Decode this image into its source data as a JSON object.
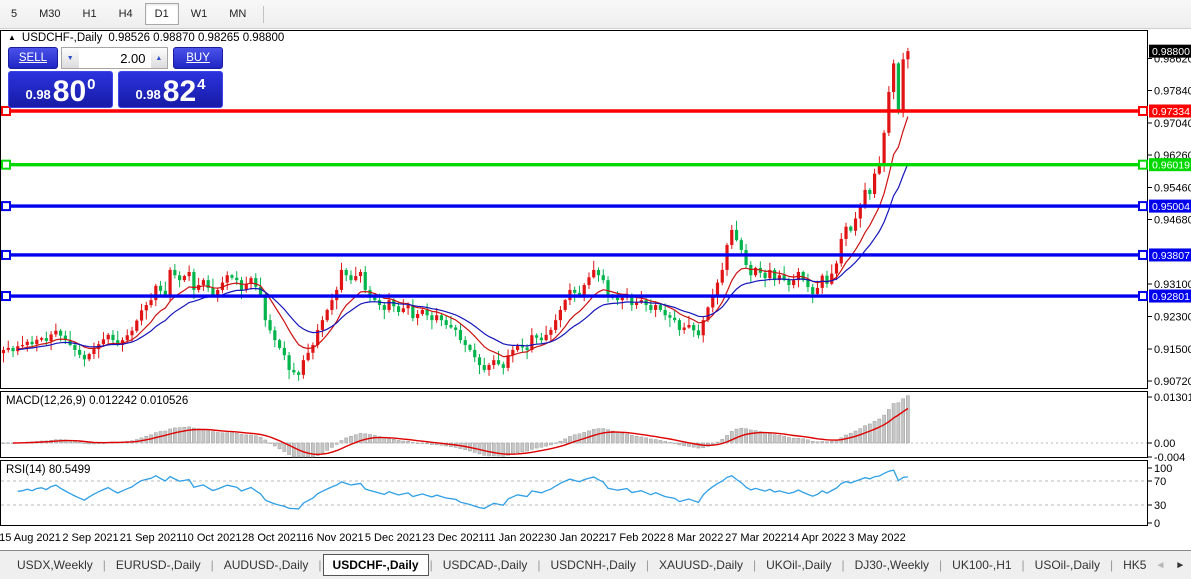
{
  "toolbar": {
    "timeframes": [
      "5",
      "M30",
      "H1",
      "H4",
      "D1",
      "W1",
      "MN"
    ],
    "active": "D1"
  },
  "chart": {
    "collapse_icon": "▲",
    "symbol_label": "USDCHF-,Daily",
    "ohlc_label": "0.98526 0.98870 0.98265 0.98800",
    "trade_widget": {
      "sell_label": "SELL",
      "buy_label": "BUY",
      "volume": "2.00",
      "vol_down_icon": "▼",
      "vol_up_icon": "▲",
      "bid_small": "0.98",
      "bid_big": "80",
      "bid_sup": "0",
      "ask_small": "0.98",
      "ask_big": "82",
      "ask_sup": "4"
    }
  },
  "chart_data": {
    "type": "candlestick",
    "symbol": "USDCHF",
    "timeframe": "Daily",
    "ohlc_display": {
      "open": "0.98526",
      "high": "0.98870",
      "low": "0.98265",
      "close": "0.98800"
    },
    "first_open": 0.914,
    "closes": [
      0.9148,
      0.9153,
      0.9145,
      0.9157,
      0.916,
      0.9168,
      0.9162,
      0.9173,
      0.9177,
      0.917,
      0.9186,
      0.9195,
      0.9183,
      0.9172,
      0.916,
      0.9148,
      0.9136,
      0.9125,
      0.9138,
      0.915,
      0.9162,
      0.9174,
      0.9185,
      0.9172,
      0.916,
      0.9172,
      0.9184,
      0.9195,
      0.922,
      0.9245,
      0.9258,
      0.927,
      0.9305,
      0.9293,
      0.9282,
      0.9344,
      0.9331,
      0.9319,
      0.9329,
      0.9339,
      0.9295,
      0.9307,
      0.9319,
      0.93,
      0.9282,
      0.9295,
      0.9313,
      0.9331,
      0.9325,
      0.9319,
      0.9295,
      0.931,
      0.9324,
      0.9303,
      0.9282,
      0.9221,
      0.9196,
      0.9172,
      0.9153,
      0.9135,
      0.9099,
      0.9093,
      0.9087,
      0.9123,
      0.9141,
      0.916,
      0.9197,
      0.9221,
      0.9246,
      0.927,
      0.9295,
      0.9344,
      0.9331,
      0.9319,
      0.9329,
      0.9339,
      0.9295,
      0.9282,
      0.927,
      0.9258,
      0.9246,
      0.927,
      0.9255,
      0.9241,
      0.925,
      0.9258,
      0.9226,
      0.9236,
      0.9246,
      0.9233,
      0.9221,
      0.9233,
      0.9221,
      0.9209,
      0.9203,
      0.9197,
      0.9172,
      0.916,
      0.9148,
      0.913,
      0.9111,
      0.9099,
      0.9111,
      0.9123,
      0.9113,
      0.9104,
      0.9135,
      0.9148,
      0.916,
      0.9154,
      0.9148,
      0.9184,
      0.9178,
      0.9172,
      0.9185,
      0.9197,
      0.9221,
      0.9246,
      0.927,
      0.9295,
      0.9288,
      0.9282,
      0.9307,
      0.9326,
      0.9344,
      0.9331,
      0.9319,
      0.9282,
      0.9276,
      0.927,
      0.9276,
      0.9282,
      0.9258,
      0.9264,
      0.927,
      0.9258,
      0.9246,
      0.9258,
      0.9246,
      0.9233,
      0.9227,
      0.9221,
      0.9197,
      0.9203,
      0.9209,
      0.9196,
      0.9184,
      0.9221,
      0.9252,
      0.9282,
      0.9313,
      0.9344,
      0.9405,
      0.9442,
      0.9417,
      0.9393,
      0.9356,
      0.9331,
      0.9349,
      0.9337,
      0.9324,
      0.9344,
      0.9319,
      0.9331,
      0.9319,
      0.9307,
      0.9319,
      0.9339,
      0.9319,
      0.9302,
      0.9285,
      0.93,
      0.933,
      0.931,
      0.9335,
      0.936,
      0.942,
      0.945,
      0.944,
      0.947,
      0.95,
      0.954,
      0.953,
      0.958,
      0.96,
      0.968,
      0.978,
      0.985,
      0.973,
      0.986,
      0.988
    ],
    "wick_pattern": [
      0.001,
      0.0022,
      0.0006,
      0.0015,
      0.0028,
      0.0008,
      0.0018,
      0.0012,
      0.0004,
      0.002
    ],
    "moving_averages": [
      {
        "name": "ma-fast",
        "period": 10,
        "color": "#cc1111"
      },
      {
        "name": "ma-slow",
        "period": 20,
        "color": "#1515bb"
      }
    ],
    "price_ticks": [
      0.9862,
      0.9784,
      0.9704,
      0.9626,
      0.9546,
      0.9468,
      0.931,
      0.923,
      0.915,
      0.9072
    ],
    "levels": [
      {
        "label": "0.97334",
        "value": 0.97334,
        "color": "#ff0000"
      },
      {
        "label": "0.96019",
        "value": 0.96019,
        "color": "#00d800"
      },
      {
        "label": "0.95004",
        "value": 0.95004,
        "color": "#0000ee"
      },
      {
        "label": "0.93807",
        "value": 0.93807,
        "color": "#0000ee"
      },
      {
        "label": "0.92801",
        "value": 0.92801,
        "color": "#0000ee"
      }
    ],
    "current_price": {
      "label": "0.98800",
      "value": 0.988,
      "color": "#000000"
    },
    "date_labels": [
      "15 Aug 2021",
      "2 Sep 2021",
      "21 Sep 2021",
      "10 Oct 2021",
      "28 Oct 2021",
      "16 Nov 2021",
      "5 Dec 2021",
      "23 Dec 2021",
      "11 Jan 2022",
      "30 Jan 2022",
      "17 Feb 2022",
      "8 Mar 2022",
      "27 Mar 2022",
      "14 Apr 2022",
      "3 May 2022"
    ],
    "macd": {
      "label": "MACD(12,26,9)",
      "values_label": "0.012242 0.010526",
      "params": {
        "fast": 12,
        "slow": 26,
        "signal": 9
      },
      "ticks": [
        {
          "label": "0.013015",
          "value": 0.013015
        },
        {
          "label": "0.00",
          "value": 0
        },
        {
          "label": "-0.004",
          "value": -0.004
        }
      ]
    },
    "rsi": {
      "label": "RSI(14)",
      "value_label": "80.5499",
      "period": 14,
      "ticks": [
        {
          "label": "100",
          "value": 100
        },
        {
          "label": "70",
          "value": 70
        },
        {
          "label": "30",
          "value": 30
        },
        {
          "label": "0",
          "value": 0
        }
      ],
      "guide_levels": [
        70,
        30
      ]
    },
    "colors": {
      "up": "#e01414",
      "down": "#00b44c",
      "macd_hist_fill": "#c6c6c6",
      "macd_hist_stroke": "#9e9e9e",
      "macd_signal": "#dd0000",
      "rsi_line": "#2e9fe6",
      "guide_dash": "#b8b8b8",
      "frame": "#000000"
    }
  },
  "tabs": {
    "items": [
      "USDX,Weekly",
      "EURUSD-,Daily",
      "AUDUSD-,Daily",
      "USDCHF-,Daily",
      "USDCAD-,Daily",
      "USDCNH-,Daily",
      "XAUUSD-,Daily",
      "UKOil-,Daily",
      "DJ30-,Weekly",
      "UK100-,H1",
      "USOil-,Daily",
      "HK5"
    ],
    "active_index": 3,
    "separator": "|",
    "scroll_left_icon": "◄",
    "scroll_right_icon": "►"
  }
}
